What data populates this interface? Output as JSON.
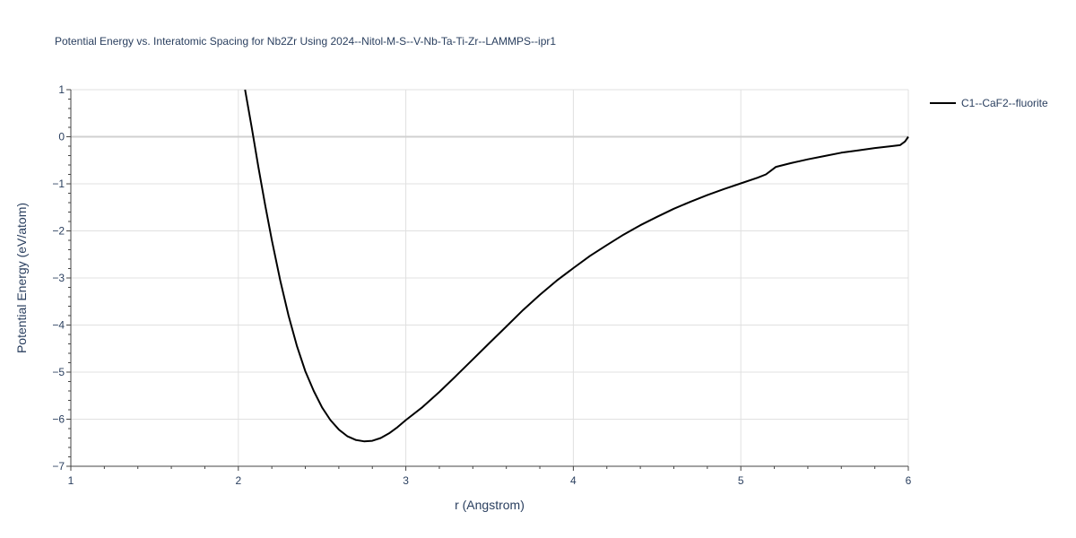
{
  "chart_data": {
    "type": "line",
    "title": "Potential Energy vs. Interatomic Spacing for Nb2Zr Using 2024--Nitol-M-S--V-Nb-Ta-Ti-Zr--LAMMPS--ipr1",
    "xlabel": "r (Angstrom)",
    "ylabel": "Potential Energy (eV/atom)",
    "xlim": [
      1,
      6
    ],
    "ylim": [
      -7,
      1
    ],
    "x_ticks": [
      "1",
      "2",
      "3",
      "4",
      "5",
      "6"
    ],
    "y_ticks": [
      "1",
      "0",
      "−1",
      "−2",
      "−3",
      "−4",
      "−5",
      "−6",
      "−7"
    ],
    "grid": true,
    "legend_position": "top-right",
    "series": [
      {
        "name": "C1--CaF2--fluorite",
        "color": "#000000",
        "x": [
          2.04,
          2.08,
          2.12,
          2.16,
          2.2,
          2.25,
          2.3,
          2.35,
          2.4,
          2.45,
          2.5,
          2.55,
          2.6,
          2.65,
          2.7,
          2.75,
          2.8,
          2.85,
          2.9,
          2.95,
          3.0,
          3.1,
          3.2,
          3.3,
          3.4,
          3.5,
          3.6,
          3.7,
          3.8,
          3.9,
          4.0,
          4.1,
          4.2,
          4.3,
          4.4,
          4.5,
          4.6,
          4.7,
          4.8,
          4.9,
          5.0,
          5.1,
          5.15,
          5.18,
          5.21,
          5.3,
          5.4,
          5.5,
          5.6,
          5.7,
          5.8,
          5.9,
          5.95,
          5.98,
          6.0
        ],
        "y": [
          1.0,
          0.2,
          -0.65,
          -1.45,
          -2.2,
          -3.05,
          -3.8,
          -4.45,
          -4.98,
          -5.4,
          -5.75,
          -6.02,
          -6.22,
          -6.36,
          -6.44,
          -6.47,
          -6.46,
          -6.4,
          -6.3,
          -6.17,
          -6.02,
          -5.74,
          -5.42,
          -5.08,
          -4.73,
          -4.38,
          -4.03,
          -3.68,
          -3.36,
          -3.06,
          -2.79,
          -2.53,
          -2.3,
          -2.08,
          -1.88,
          -1.7,
          -1.53,
          -1.38,
          -1.24,
          -1.11,
          -0.99,
          -0.87,
          -0.8,
          -0.72,
          -0.64,
          -0.56,
          -0.48,
          -0.41,
          -0.34,
          -0.29,
          -0.24,
          -0.2,
          -0.18,
          -0.1,
          0.0
        ]
      }
    ]
  }
}
